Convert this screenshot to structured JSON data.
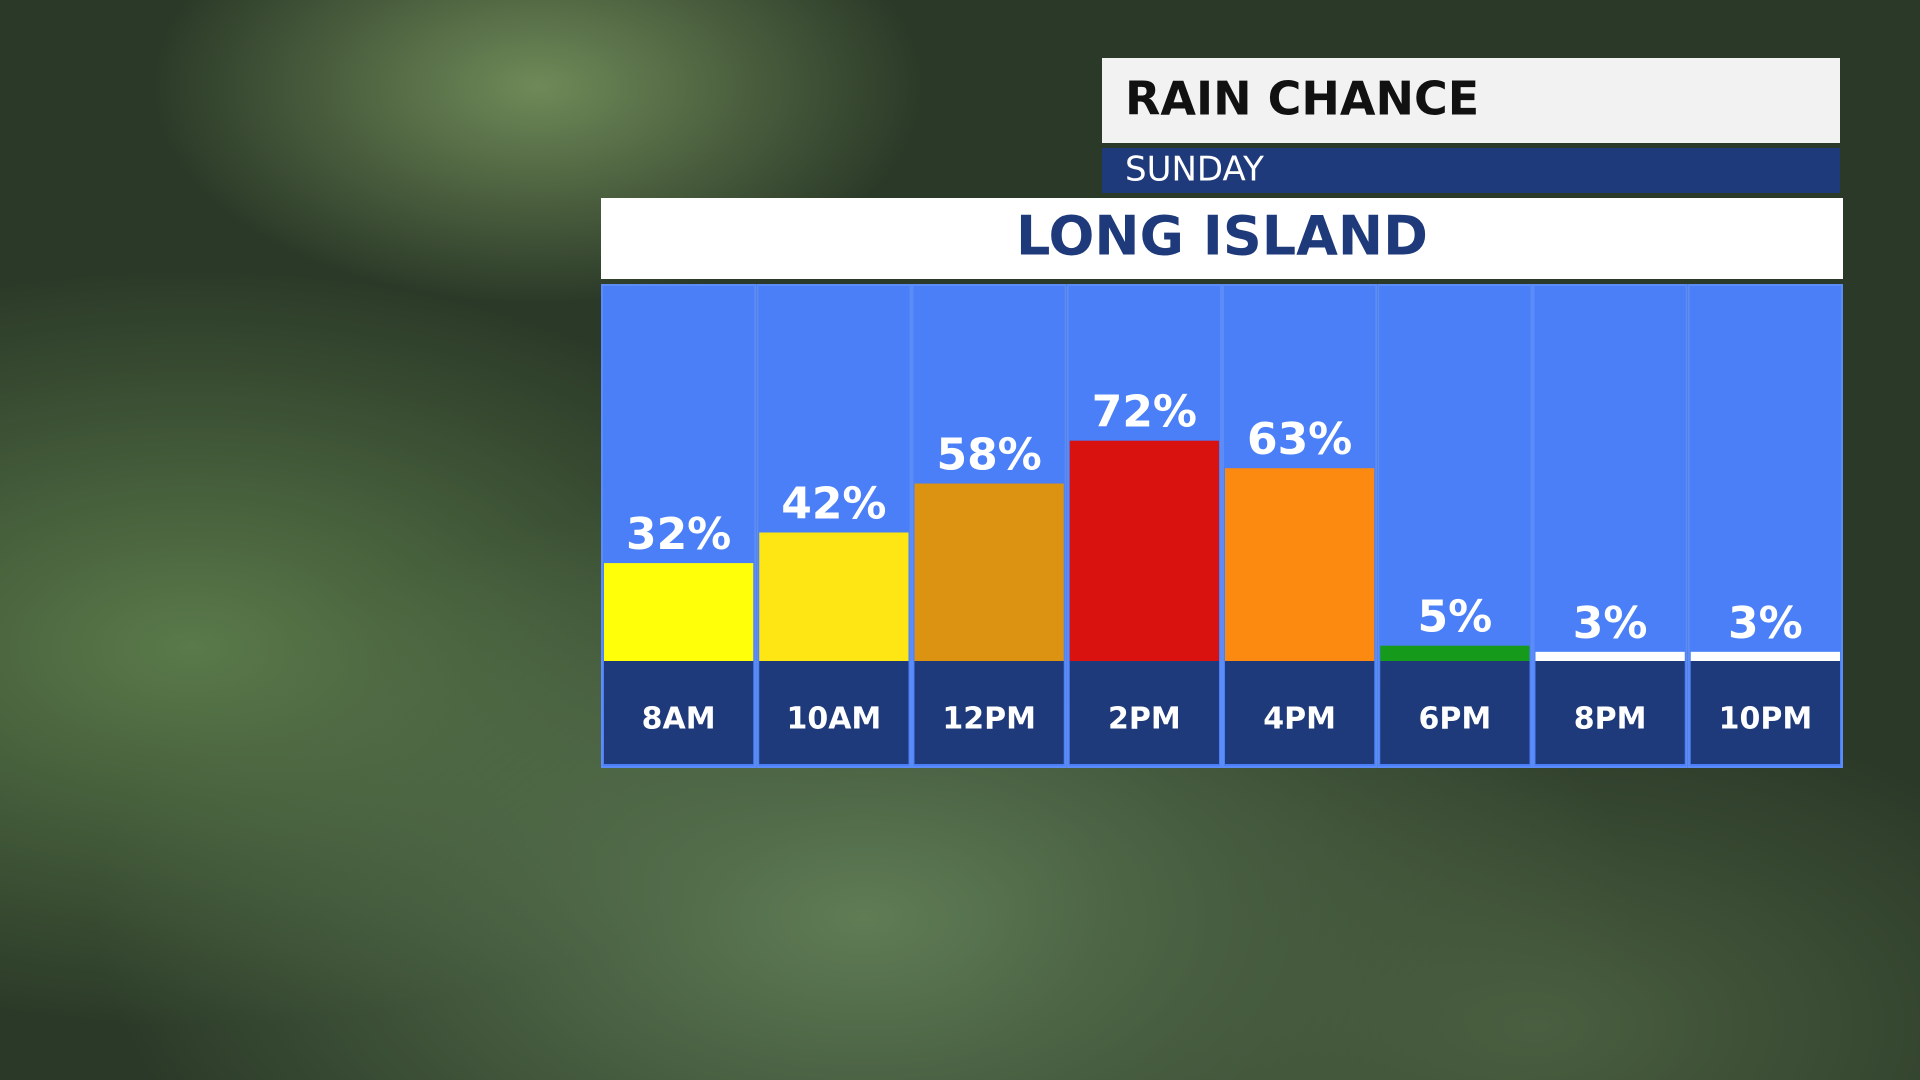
{
  "chart_data": {
    "type": "bar",
    "title": "RAIN CHANCE",
    "subtitle": "SUNDAY",
    "location": "LONG ISLAND",
    "categories": [
      "8AM",
      "10AM",
      "12PM",
      "2PM",
      "4PM",
      "6PM",
      "8PM",
      "10PM"
    ],
    "values": [
      32,
      42,
      58,
      72,
      63,
      5,
      3,
      3
    ],
    "value_labels": [
      "32%",
      "42%",
      "58%",
      "72%",
      "63%",
      "5%",
      "3%",
      "3%"
    ],
    "colors": [
      "#ffff0a",
      "#fde614",
      "#db9311",
      "#d9110f",
      "#fd8a10",
      "#159a1c",
      "#ffffff",
      "#ffffff"
    ]
  }
}
